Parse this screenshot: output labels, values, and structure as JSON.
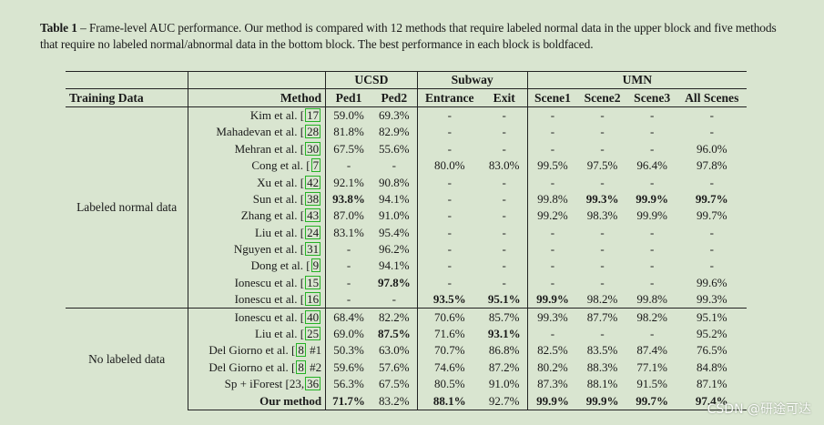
{
  "caption": {
    "label": "Table 1",
    "text": " – Frame-level AUC performance. Our method is compared with 12 methods that require labeled normal data in the upper block and five methods that require no labeled normal/abnormal data in the bottom block. The best performance in each block is boldfaced."
  },
  "headers": {
    "training_data": "Training Data",
    "method": "Method",
    "ucsd": "UCSD",
    "subway": "Subway",
    "umn": "UMN",
    "cols": [
      "Ped1",
      "Ped2",
      "Entrance",
      "Exit",
      "Scene1",
      "Scene2",
      "Scene3",
      "All Scenes"
    ]
  },
  "blocks": [
    {
      "label": "Labeled normal data",
      "rows": [
        {
          "name": "Kim et al.",
          "ref": "17",
          "suffix": "",
          "vals": [
            "59.0%",
            "69.3%",
            "-",
            "-",
            "-",
            "-",
            "-",
            "-"
          ],
          "bold": []
        },
        {
          "name": "Mahadevan et al.",
          "ref": "28",
          "suffix": "",
          "vals": [
            "81.8%",
            "82.9%",
            "-",
            "-",
            "-",
            "-",
            "-",
            "-"
          ],
          "bold": []
        },
        {
          "name": "Mehran et al.",
          "ref": "30",
          "suffix": "",
          "vals": [
            "67.5%",
            "55.6%",
            "-",
            "-",
            "-",
            "-",
            "-",
            "96.0%"
          ],
          "bold": []
        },
        {
          "name": "Cong et al.",
          "ref": "7",
          "suffix": "",
          "vals": [
            "-",
            "-",
            "80.0%",
            "83.0%",
            "99.5%",
            "97.5%",
            "96.4%",
            "97.8%"
          ],
          "bold": []
        },
        {
          "name": "Xu et al.",
          "ref": "42",
          "suffix": "",
          "vals": [
            "92.1%",
            "90.8%",
            "-",
            "-",
            "-",
            "-",
            "-",
            "-"
          ],
          "bold": []
        },
        {
          "name": "Sun et al.",
          "ref": "38",
          "suffix": "",
          "vals": [
            "93.8%",
            "94.1%",
            "-",
            "-",
            "99.8%",
            "99.3%",
            "99.9%",
            "99.7%"
          ],
          "bold": [
            0,
            5,
            6,
            7
          ]
        },
        {
          "name": "Zhang et al.",
          "ref": "43",
          "suffix": "",
          "vals": [
            "87.0%",
            "91.0%",
            "-",
            "-",
            "99.2%",
            "98.3%",
            "99.9%",
            "99.7%"
          ],
          "bold": []
        },
        {
          "name": "Liu et al.",
          "ref": "24",
          "suffix": "",
          "vals": [
            "83.1%",
            "95.4%",
            "-",
            "-",
            "-",
            "-",
            "-",
            "-"
          ],
          "bold": []
        },
        {
          "name": "Nguyen et al.",
          "ref": "31",
          "suffix": "",
          "vals": [
            "-",
            "96.2%",
            "-",
            "-",
            "-",
            "-",
            "-",
            "-"
          ],
          "bold": []
        },
        {
          "name": "Dong et al.",
          "ref": "9",
          "suffix": "",
          "vals": [
            "-",
            "94.1%",
            "-",
            "-",
            "-",
            "-",
            "-",
            "-"
          ],
          "bold": []
        },
        {
          "name": "Ionescu et al.",
          "ref": "15",
          "suffix": "",
          "vals": [
            "-",
            "97.8%",
            "-",
            "-",
            "-",
            "-",
            "-",
            "99.6%"
          ],
          "bold": [
            1
          ]
        },
        {
          "name": "Ionescu et al.",
          "ref": "16",
          "suffix": "",
          "vals": [
            "-",
            "-",
            "93.5%",
            "95.1%",
            "99.9%",
            "98.2%",
            "99.8%",
            "99.3%"
          ],
          "bold": [
            2,
            3,
            4
          ]
        }
      ]
    },
    {
      "label": "No labeled data",
      "rows": [
        {
          "name": "Ionescu et al.",
          "ref": "40",
          "suffix": "",
          "vals": [
            "68.4%",
            "82.2%",
            "70.6%",
            "85.7%",
            "99.3%",
            "87.7%",
            "98.2%",
            "95.1%"
          ],
          "bold": []
        },
        {
          "name": "Liu et al.",
          "ref": "25",
          "suffix": "",
          "vals": [
            "69.0%",
            "87.5%",
            "71.6%",
            "93.1%",
            "-",
            "-",
            "-",
            "95.2%"
          ],
          "bold": [
            1,
            3
          ]
        },
        {
          "name": "Del Giorno et al.",
          "ref": "8",
          "suffix": " #1",
          "vals": [
            "50.3%",
            "63.0%",
            "70.7%",
            "86.8%",
            "82.5%",
            "83.5%",
            "87.4%",
            "76.5%"
          ],
          "bold": []
        },
        {
          "name": "Del Giorno et al.",
          "ref": "8",
          "suffix": " #2",
          "vals": [
            "59.6%",
            "57.6%",
            "74.6%",
            "87.2%",
            "80.2%",
            "88.3%",
            "77.1%",
            "84.8%"
          ],
          "bold": []
        },
        {
          "name": "Sp + iForest [23,",
          "ref": "36",
          "suffix": "",
          "vals": [
            "56.3%",
            "67.5%",
            "80.5%",
            "91.0%",
            "87.3%",
            "88.1%",
            "91.5%",
            "87.1%"
          ],
          "bold": []
        },
        {
          "name": "Our method",
          "ref": "",
          "suffix": "",
          "vals": [
            "71.7%",
            "83.2%",
            "88.1%",
            "92.7%",
            "99.9%",
            "99.9%",
            "99.7%",
            "97.4%"
          ],
          "bold": [
            0,
            2,
            4,
            5,
            6,
            7
          ],
          "name_bold": true
        }
      ]
    }
  ],
  "watermark": "CSDN @研途可达"
}
